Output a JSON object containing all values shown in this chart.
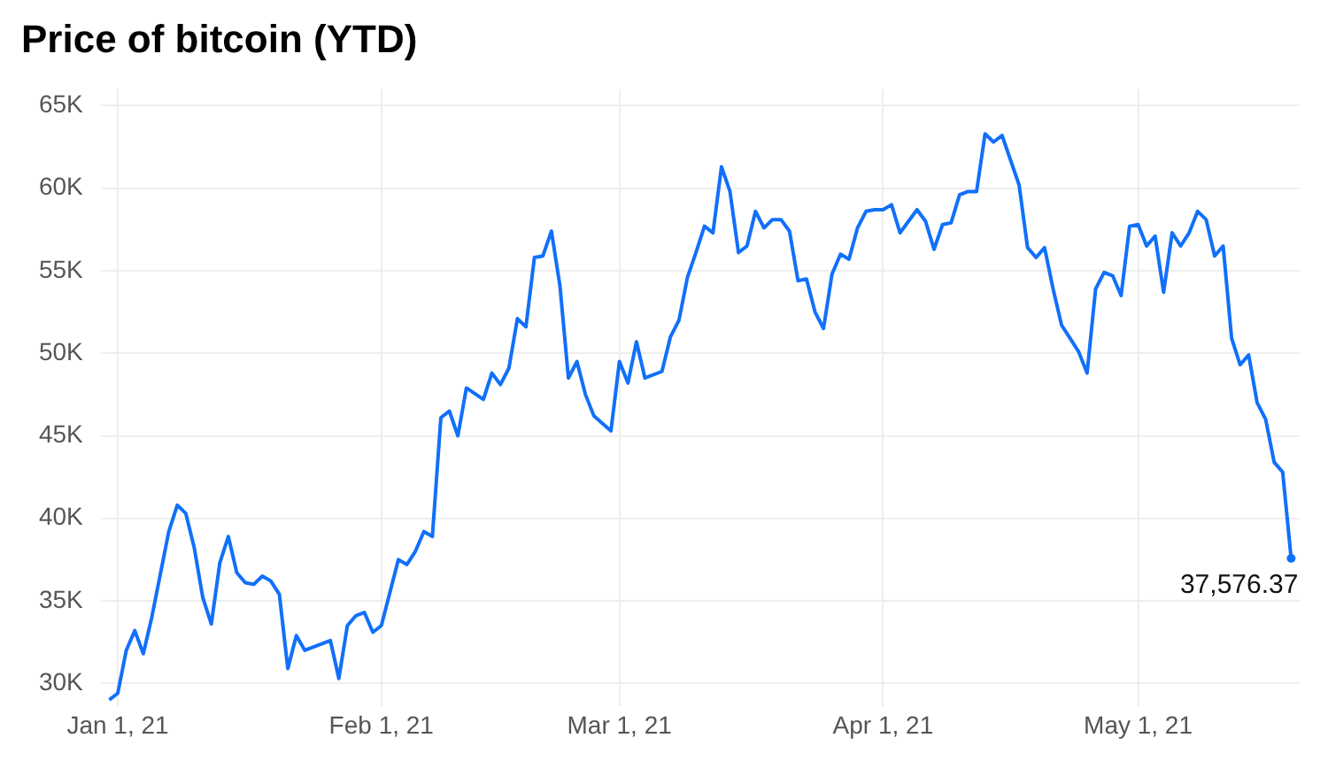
{
  "chart_data": {
    "type": "line",
    "title": "Price of bitcoin (YTD)",
    "x": [
      "2020-12-31",
      "2021-01-01",
      "2021-01-02",
      "2021-01-03",
      "2021-01-04",
      "2021-01-05",
      "2021-01-07",
      "2021-01-08",
      "2021-01-09",
      "2021-01-10",
      "2021-01-11",
      "2021-01-12",
      "2021-01-13",
      "2021-01-14",
      "2021-01-15",
      "2021-01-16",
      "2021-01-17",
      "2021-01-18",
      "2021-01-19",
      "2021-01-20",
      "2021-01-21",
      "2021-01-22",
      "2021-01-23",
      "2021-01-26",
      "2021-01-27",
      "2021-01-28",
      "2021-01-29",
      "2021-01-30",
      "2021-01-31",
      "2021-02-01",
      "2021-02-03",
      "2021-02-04",
      "2021-02-05",
      "2021-02-06",
      "2021-02-07",
      "2021-02-08",
      "2021-02-09",
      "2021-02-10",
      "2021-02-11",
      "2021-02-13",
      "2021-02-14",
      "2021-02-15",
      "2021-02-16",
      "2021-02-17",
      "2021-02-18",
      "2021-02-19",
      "2021-02-20",
      "2021-02-21",
      "2021-02-22",
      "2021-02-23",
      "2021-02-24",
      "2021-02-25",
      "2021-02-26",
      "2021-02-28",
      "2021-03-01",
      "2021-03-02",
      "2021-03-03",
      "2021-03-04",
      "2021-03-06",
      "2021-03-07",
      "2021-03-08",
      "2021-03-09",
      "2021-03-10",
      "2021-03-11",
      "2021-03-12",
      "2021-03-13",
      "2021-03-14",
      "2021-03-15",
      "2021-03-16",
      "2021-03-17",
      "2021-03-18",
      "2021-03-19",
      "2021-03-20",
      "2021-03-21",
      "2021-03-22",
      "2021-03-23",
      "2021-03-24",
      "2021-03-25",
      "2021-03-26",
      "2021-03-27",
      "2021-03-28",
      "2021-03-29",
      "2021-03-30",
      "2021-03-31",
      "2021-04-01",
      "2021-04-02",
      "2021-04-03",
      "2021-04-04",
      "2021-04-05",
      "2021-04-06",
      "2021-04-07",
      "2021-04-08",
      "2021-04-09",
      "2021-04-10",
      "2021-04-11",
      "2021-04-12",
      "2021-04-13",
      "2021-04-14",
      "2021-04-15",
      "2021-04-16",
      "2021-04-17",
      "2021-04-18",
      "2021-04-19",
      "2021-04-20",
      "2021-04-21",
      "2021-04-22",
      "2021-04-23",
      "2021-04-24",
      "2021-04-25",
      "2021-04-26",
      "2021-04-27",
      "2021-04-28",
      "2021-04-29",
      "2021-04-30",
      "2021-05-01",
      "2021-05-02",
      "2021-05-03",
      "2021-05-04",
      "2021-05-05",
      "2021-05-06",
      "2021-05-07",
      "2021-05-08",
      "2021-05-09",
      "2021-05-10",
      "2021-05-11",
      "2021-05-12",
      "2021-05-13",
      "2021-05-14",
      "2021-05-15",
      "2021-05-16",
      "2021-05-17",
      "2021-05-18",
      "2021-05-19"
    ],
    "series": [
      {
        "color": "#1170fa",
        "values": [
          29000,
          29400,
          32000,
          33200,
          31800,
          34000,
          39200,
          40800,
          40300,
          38200,
          35200,
          33600,
          37300,
          38900,
          36700,
          36100,
          36000,
          36500,
          36200,
          35400,
          30900,
          32900,
          32000,
          32600,
          30300,
          33500,
          34100,
          34300,
          33100,
          33500,
          37500,
          37200,
          38000,
          39200,
          38900,
          46100,
          46500,
          45000,
          47900,
          47200,
          48800,
          48100,
          49100,
          52100,
          51600,
          55800,
          55900,
          57400,
          54100,
          48500,
          49500,
          47500,
          46200,
          45300,
          49500,
          48200,
          50700,
          48500,
          48900,
          51000,
          52000,
          54600,
          56100,
          57700,
          57300,
          61300,
          59800,
          56100,
          56500,
          58600,
          57600,
          58100,
          58100,
          57400,
          54400,
          54500,
          52500,
          51500,
          54800,
          56000,
          55700,
          57600,
          58600,
          58700,
          58700,
          59000,
          57300,
          58000,
          58700,
          58000,
          56300,
          57800,
          57900,
          59600,
          59800,
          59800,
          63300,
          62800,
          63200,
          61700,
          60200,
          56400,
          55800,
          56400,
          53900,
          51700,
          50900,
          50100,
          48800,
          53900,
          54900,
          54700,
          53500,
          57700,
          57800,
          56500,
          57100,
          53700,
          57300,
          56500,
          57300,
          58600,
          58100,
          55900,
          56500,
          50900,
          49300,
          49900,
          47000,
          46000,
          43400,
          42800,
          37576.37
        ]
      }
    ],
    "xlim": [
      "2020-12-30",
      "2021-05-20"
    ],
    "xticks": [
      {
        "value": "2021-01-01",
        "label": "Jan 1, 21"
      },
      {
        "value": "2021-02-01",
        "label": "Feb 1, 21"
      },
      {
        "value": "2021-03-01",
        "label": "Mar 1, 21"
      },
      {
        "value": "2021-04-01",
        "label": "Apr 1, 21"
      },
      {
        "value": "2021-05-01",
        "label": "May 1, 21"
      }
    ],
    "ylim": [
      28600,
      66000
    ],
    "yticks": [
      {
        "value": 30000,
        "label": "30K"
      },
      {
        "value": 35000,
        "label": "35K"
      },
      {
        "value": 40000,
        "label": "40K"
      },
      {
        "value": 45000,
        "label": "45K"
      },
      {
        "value": 50000,
        "label": "50K"
      },
      {
        "value": 55000,
        "label": "55K"
      },
      {
        "value": 60000,
        "label": "60K"
      },
      {
        "value": 65000,
        "label": "65K"
      }
    ],
    "grid": true,
    "line_style": "solid",
    "annotations": [
      {
        "text": "37,576.37",
        "x": "2021-05-19",
        "y": 37576.37
      }
    ]
  }
}
